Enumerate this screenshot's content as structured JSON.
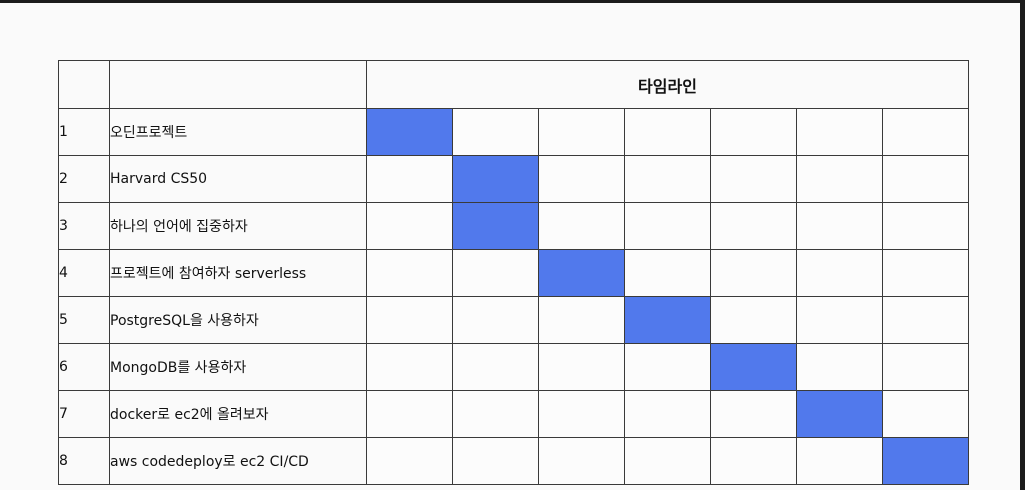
{
  "timeline": {
    "header_title": "타임라인",
    "period_count": 7,
    "active_color": "#5179ec",
    "rows": [
      {
        "num": "1",
        "task": "오딘프로젝트",
        "active": [
          1
        ]
      },
      {
        "num": "2",
        "task": "Harvard CS50",
        "active": [
          2
        ]
      },
      {
        "num": "3",
        "task": "하나의 언어에 집중하자",
        "active": [
          2
        ]
      },
      {
        "num": "4",
        "task": "프로젝트에 참여하자 serverless",
        "active": [
          3
        ]
      },
      {
        "num": "5",
        "task": "PostgreSQL을 사용하자",
        "active": [
          4
        ]
      },
      {
        "num": "6",
        "task": "MongoDB를 사용하자",
        "active": [
          5
        ]
      },
      {
        "num": "7",
        "task": "docker로 ec2에 올려보자",
        "active": [
          6
        ]
      },
      {
        "num": "8",
        "task": "aws codedeploy로 ec2 CI/CD",
        "active": [
          7
        ]
      }
    ]
  }
}
